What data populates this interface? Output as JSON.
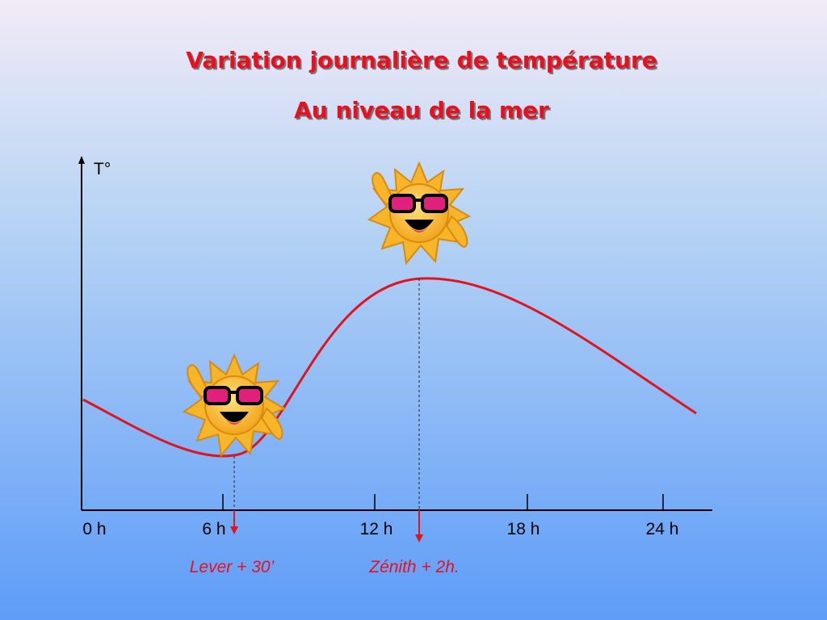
{
  "header": {
    "title": "Variation journalière de température",
    "subtitle": "Au niveau de la mer"
  },
  "axes": {
    "y_label": "T°",
    "x_ticks": [
      "0 h",
      "6 h",
      "12 h",
      "18 h",
      "24 h"
    ]
  },
  "annotations": [
    "Lever + 30’",
    "Zénith + 2h."
  ]
}
